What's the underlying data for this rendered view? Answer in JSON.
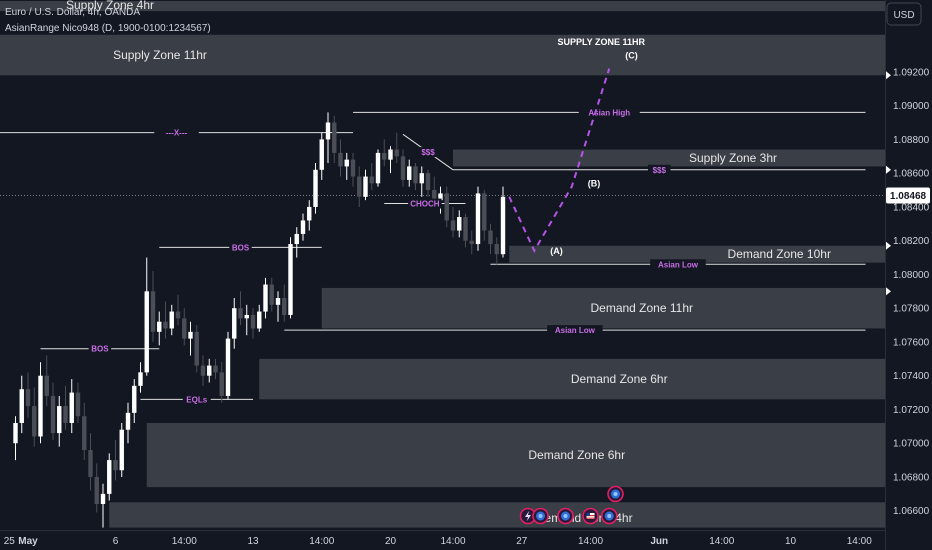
{
  "header": {
    "symbol_line": "Euro / U.S. Dollar, 4h, OANDA",
    "indicator_line": "AsianRange Nico948 (D, 1900-0100:1234567)",
    "currency_button": "USD"
  },
  "chart_data": {
    "type": "candlestick",
    "symbol": "EUR/USD",
    "timeframe": "4h",
    "ylim": [
      1.0648,
      1.0962
    ],
    "last_price": "1.08468",
    "last_price_value": 1.08468,
    "y_ticks": [
      {
        "label": "1.09200",
        "value": 1.092
      },
      {
        "label": "1.09000",
        "value": 1.09
      },
      {
        "label": "1.08800",
        "value": 1.088
      },
      {
        "label": "1.08600",
        "value": 1.086
      },
      {
        "label": "1.08400",
        "value": 1.084
      },
      {
        "label": "1.08200",
        "value": 1.082
      },
      {
        "label": "1.08000",
        "value": 1.08
      },
      {
        "label": "1.07800",
        "value": 1.078
      },
      {
        "label": "1.07600",
        "value": 1.076
      },
      {
        "label": "1.07400",
        "value": 1.074
      },
      {
        "label": "1.07200",
        "value": 1.072
      },
      {
        "label": "1.07000",
        "value": 1.07
      },
      {
        "label": "1.06800",
        "value": 1.068
      },
      {
        "label": "1.06600",
        "value": 1.066
      }
    ],
    "x_ticks": [
      {
        "label": "25",
        "bar": -1
      },
      {
        "label": "May",
        "bar": 2
      },
      {
        "label": "6",
        "bar": 16
      },
      {
        "label": "14:00",
        "bar": 27
      },
      {
        "label": "13",
        "bar": 38
      },
      {
        "label": "14:00",
        "bar": 49
      },
      {
        "label": "20",
        "bar": 60
      },
      {
        "label": "14:00",
        "bar": 70
      },
      {
        "label": "27",
        "bar": 81
      },
      {
        "label": "14:00",
        "bar": 92
      },
      {
        "label": "Jun",
        "bar": 103
      },
      {
        "label": "14:00",
        "bar": 113
      },
      {
        "label": "10",
        "bar": 124
      },
      {
        "label": "14:00",
        "bar": 135
      }
    ],
    "candles": [
      {
        "o": 1.07,
        "h": 1.0716,
        "l": 1.069,
        "c": 1.0712
      },
      {
        "o": 1.0712,
        "h": 1.074,
        "l": 1.0706,
        "c": 1.0732
      },
      {
        "o": 1.0732,
        "h": 1.0742,
        "l": 1.0715,
        "c": 1.0722
      },
      {
        "o": 1.0722,
        "h": 1.0733,
        "l": 1.0698,
        "c": 1.0704
      },
      {
        "o": 1.0704,
        "h": 1.0748,
        "l": 1.07,
        "c": 1.074
      },
      {
        "o": 1.074,
        "h": 1.0752,
        "l": 1.0722,
        "c": 1.0728
      },
      {
        "o": 1.0728,
        "h": 1.0736,
        "l": 1.0702,
        "c": 1.0706
      },
      {
        "o": 1.0706,
        "h": 1.0728,
        "l": 1.0698,
        "c": 1.0722
      },
      {
        "o": 1.0722,
        "h": 1.0734,
        "l": 1.0708,
        "c": 1.0712
      },
      {
        "o": 1.0712,
        "h": 1.0738,
        "l": 1.0706,
        "c": 1.073
      },
      {
        "o": 1.073,
        "h": 1.0736,
        "l": 1.0712,
        "c": 1.0716
      },
      {
        "o": 1.0716,
        "h": 1.0724,
        "l": 1.069,
        "c": 1.0696
      },
      {
        "o": 1.0696,
        "h": 1.0706,
        "l": 1.0672,
        "c": 1.068
      },
      {
        "o": 1.068,
        "h": 1.0688,
        "l": 1.0659,
        "c": 1.0664
      },
      {
        "o": 1.0664,
        "h": 1.0676,
        "l": 1.065,
        "c": 1.067
      },
      {
        "o": 1.067,
        "h": 1.0694,
        "l": 1.0666,
        "c": 1.069
      },
      {
        "o": 1.069,
        "h": 1.0702,
        "l": 1.0678,
        "c": 1.0684
      },
      {
        "o": 1.0684,
        "h": 1.0712,
        "l": 1.068,
        "c": 1.0708
      },
      {
        "o": 1.0708,
        "h": 1.0724,
        "l": 1.07,
        "c": 1.0718
      },
      {
        "o": 1.0718,
        "h": 1.0738,
        "l": 1.0712,
        "c": 1.0734
      },
      {
        "o": 1.0734,
        "h": 1.0748,
        "l": 1.073,
        "c": 1.0742
      },
      {
        "o": 1.0742,
        "h": 1.081,
        "l": 1.074,
        "c": 1.079
      },
      {
        "o": 1.079,
        "h": 1.0802,
        "l": 1.076,
        "c": 1.0766
      },
      {
        "o": 1.0766,
        "h": 1.0778,
        "l": 1.0758,
        "c": 1.0772
      },
      {
        "o": 1.0772,
        "h": 1.0784,
        "l": 1.0762,
        "c": 1.0768
      },
      {
        "o": 1.0768,
        "h": 1.0782,
        "l": 1.0764,
        "c": 1.0778
      },
      {
        "o": 1.0778,
        "h": 1.0788,
        "l": 1.077,
        "c": 1.0774
      },
      {
        "o": 1.0774,
        "h": 1.078,
        "l": 1.0758,
        "c": 1.0762
      },
      {
        "o": 1.0762,
        "h": 1.0772,
        "l": 1.0752,
        "c": 1.0766
      },
      {
        "o": 1.0766,
        "h": 1.077,
        "l": 1.0742,
        "c": 1.0746
      },
      {
        "o": 1.0746,
        "h": 1.0752,
        "l": 1.0734,
        "c": 1.074
      },
      {
        "o": 1.074,
        "h": 1.075,
        "l": 1.0736,
        "c": 1.0746
      },
      {
        "o": 1.0746,
        "h": 1.075,
        "l": 1.0738,
        "c": 1.0742
      },
      {
        "o": 1.0742,
        "h": 1.0748,
        "l": 1.0724,
        "c": 1.0728
      },
      {
        "o": 1.0728,
        "h": 1.0766,
        "l": 1.0726,
        "c": 1.0762
      },
      {
        "o": 1.0762,
        "h": 1.0786,
        "l": 1.0756,
        "c": 1.078
      },
      {
        "o": 1.078,
        "h": 1.079,
        "l": 1.077,
        "c": 1.0774
      },
      {
        "o": 1.0774,
        "h": 1.0782,
        "l": 1.0764,
        "c": 1.0776
      },
      {
        "o": 1.0776,
        "h": 1.078,
        "l": 1.0762,
        "c": 1.0768
      },
      {
        "o": 1.0768,
        "h": 1.0782,
        "l": 1.0766,
        "c": 1.0778
      },
      {
        "o": 1.0778,
        "h": 1.0798,
        "l": 1.0774,
        "c": 1.0794
      },
      {
        "o": 1.0794,
        "h": 1.0798,
        "l": 1.0778,
        "c": 1.0782
      },
      {
        "o": 1.0782,
        "h": 1.079,
        "l": 1.0772,
        "c": 1.0786
      },
      {
        "o": 1.0786,
        "h": 1.0794,
        "l": 1.0772,
        "c": 1.0776
      },
      {
        "o": 1.0776,
        "h": 1.0822,
        "l": 1.0774,
        "c": 1.0818
      },
      {
        "o": 1.0818,
        "h": 1.0828,
        "l": 1.081,
        "c": 1.0824
      },
      {
        "o": 1.0824,
        "h": 1.0836,
        "l": 1.082,
        "c": 1.0832
      },
      {
        "o": 1.0832,
        "h": 1.0844,
        "l": 1.0826,
        "c": 1.084
      },
      {
        "o": 1.084,
        "h": 1.0866,
        "l": 1.0836,
        "c": 1.0862
      },
      {
        "o": 1.0862,
        "h": 1.0884,
        "l": 1.0856,
        "c": 1.088
      },
      {
        "o": 1.088,
        "h": 1.0896,
        "l": 1.0866,
        "c": 1.089
      },
      {
        "o": 1.089,
        "h": 1.0894,
        "l": 1.0866,
        "c": 1.0872
      },
      {
        "o": 1.0872,
        "h": 1.088,
        "l": 1.0858,
        "c": 1.0864
      },
      {
        "o": 1.0864,
        "h": 1.0872,
        "l": 1.0856,
        "c": 1.0868
      },
      {
        "o": 1.0868,
        "h": 1.0872,
        "l": 1.0852,
        "c": 1.0858
      },
      {
        "o": 1.0858,
        "h": 1.0864,
        "l": 1.084,
        "c": 1.0846
      },
      {
        "o": 1.0846,
        "h": 1.0862,
        "l": 1.0844,
        "c": 1.0858
      },
      {
        "o": 1.0858,
        "h": 1.0866,
        "l": 1.085,
        "c": 1.0854
      },
      {
        "o": 1.0854,
        "h": 1.0874,
        "l": 1.0852,
        "c": 1.0872
      },
      {
        "o": 1.0872,
        "h": 1.088,
        "l": 1.0864,
        "c": 1.0868
      },
      {
        "o": 1.0868,
        "h": 1.0876,
        "l": 1.086,
        "c": 1.0874
      },
      {
        "o": 1.0874,
        "h": 1.0884,
        "l": 1.0866,
        "c": 1.087
      },
      {
        "o": 1.087,
        "h": 1.0874,
        "l": 1.0852,
        "c": 1.0856
      },
      {
        "o": 1.0856,
        "h": 1.0868,
        "l": 1.0852,
        "c": 1.0864
      },
      {
        "o": 1.0864,
        "h": 1.0866,
        "l": 1.085,
        "c": 1.0854
      },
      {
        "o": 1.0854,
        "h": 1.0864,
        "l": 1.0846,
        "c": 1.086
      },
      {
        "o": 1.086,
        "h": 1.0862,
        "l": 1.0846,
        "c": 1.085
      },
      {
        "o": 1.085,
        "h": 1.0858,
        "l": 1.084,
        "c": 1.0844
      },
      {
        "o": 1.0844,
        "h": 1.0852,
        "l": 1.0836,
        "c": 1.0848
      },
      {
        "o": 1.0848,
        "h": 1.0852,
        "l": 1.0828,
        "c": 1.0832
      },
      {
        "o": 1.0832,
        "h": 1.084,
        "l": 1.0822,
        "c": 1.0826
      },
      {
        "o": 1.0826,
        "h": 1.0838,
        "l": 1.0822,
        "c": 1.0834
      },
      {
        "o": 1.0834,
        "h": 1.0836,
        "l": 1.0816,
        "c": 1.082
      },
      {
        "o": 1.082,
        "h": 1.0826,
        "l": 1.0812,
        "c": 1.0818
      },
      {
        "o": 1.0818,
        "h": 1.0852,
        "l": 1.0814,
        "c": 1.0848
      },
      {
        "o": 1.0848,
        "h": 1.085,
        "l": 1.082,
        "c": 1.0826
      },
      {
        "o": 1.0826,
        "h": 1.083,
        "l": 1.0812,
        "c": 1.0818
      },
      {
        "o": 1.0818,
        "h": 1.0822,
        "l": 1.0806,
        "c": 1.0812
      },
      {
        "o": 1.0812,
        "h": 1.0852,
        "l": 1.081,
        "c": 1.0846
      }
    ],
    "zones": [
      {
        "label": "Supply Zone 4hr",
        "start_bar": -6,
        "top": 1.0962,
        "bottom": 1.0956,
        "label_dx": 110,
        "label_dy": -1
      },
      {
        "label": "Supply Zone 11hr",
        "start_bar": -6,
        "top": 1.0942,
        "bottom": 1.0918,
        "label_dx": 160,
        "label_dy": 0
      },
      {
        "label": "Supply Zone 3hr",
        "start_bar": 70,
        "top": 1.0874,
        "bottom": 1.0864,
        "label_dx": 280,
        "label_dy": 0
      },
      {
        "label": "Demand Zone 10hr",
        "start_bar": 79,
        "top": 1.0817,
        "bottom": 1.0807,
        "label_dx": 270,
        "label_dy": 0
      },
      {
        "label": "Demand Zone 11hr",
        "start_bar": 49,
        "top": 1.0792,
        "bottom": 1.0768,
        "label_dx": 320,
        "label_dy": 0
      },
      {
        "label": "Demand Zone 6hr",
        "start_bar": 39,
        "top": 1.075,
        "bottom": 1.0726,
        "label_dx": 360,
        "label_dy": 0
      },
      {
        "label": "Demand Zone 6hr",
        "start_bar": 21,
        "top": 1.0712,
        "bottom": 1.0674,
        "label_dx": 430,
        "label_dy": 0
      },
      {
        "label": "Demand Zone 4hr",
        "start_bar": 15,
        "top": 1.0665,
        "bottom": 1.065,
        "label_dx": 475,
        "label_dy": 3
      }
    ],
    "annotations": [
      {
        "kind": "line",
        "label": "BOS",
        "bar1": 23,
        "bar2": 49,
        "price": 1.0816
      },
      {
        "kind": "line",
        "label": "BOS",
        "bar1": 4,
        "bar2": 23,
        "price": 1.0756
      },
      {
        "kind": "line",
        "label": "EQLs",
        "bar1": 20,
        "bar2": 38,
        "price": 1.0726
      },
      {
        "kind": "line",
        "label": "CHOCH",
        "bar1": 59,
        "bar2": 72,
        "price": 1.0842
      },
      {
        "kind": "line",
        "label": "---X---",
        "bar1": -6,
        "bar2": 54,
        "price": 1.0884
      },
      {
        "kind": "line",
        "label": "Asian High",
        "bar1": 54,
        "bar2": 136,
        "price": 1.0896
      },
      {
        "kind": "line",
        "label": "Asian Low",
        "bar1": 43,
        "bar2": 136,
        "price": 1.0767
      },
      {
        "kind": "line",
        "label": "Asian Low",
        "bar1": 76,
        "bar2": 136,
        "price": 1.0806
      },
      {
        "kind": "line",
        "label": "$$$",
        "bar1": 70,
        "bar2": 136,
        "price": 1.0862
      },
      {
        "kind": "line",
        "label": "$$$",
        "bar1": 62,
        "bar2": 70,
        "price": 1.0883,
        "price2": 1.0862
      }
    ],
    "projection": {
      "points": [
        {
          "bar": 79,
          "price": 1.0846
        },
        {
          "bar": 83,
          "price": 1.0814,
          "label": "(A)"
        },
        {
          "bar": 89,
          "price": 1.0852,
          "label": "(B)"
        },
        {
          "bar": 95,
          "price": 1.0922,
          "label": "(C)"
        }
      ],
      "label": "SUPPLY ZONE 11HR"
    },
    "markers": [
      {
        "icon": "lightning-icon",
        "bar": 82
      },
      {
        "icon": "globe-icon",
        "bar": 84
      },
      {
        "icon": "globe-icon",
        "bar": 88
      },
      {
        "icon": "us-flag-icon",
        "bar": 92
      },
      {
        "icon": "globe-icon",
        "bar": 95
      },
      {
        "icon": "globe-icon",
        "bar": 96
      }
    ],
    "colors": {
      "background": "#131722",
      "up_candle": "#ffffff",
      "down_candle": "#4b4e56",
      "zone_fill": "#5b5e66",
      "annotation": "#c86de6",
      "projection": "#b455e6",
      "grid_line": "#ffffff"
    }
  }
}
